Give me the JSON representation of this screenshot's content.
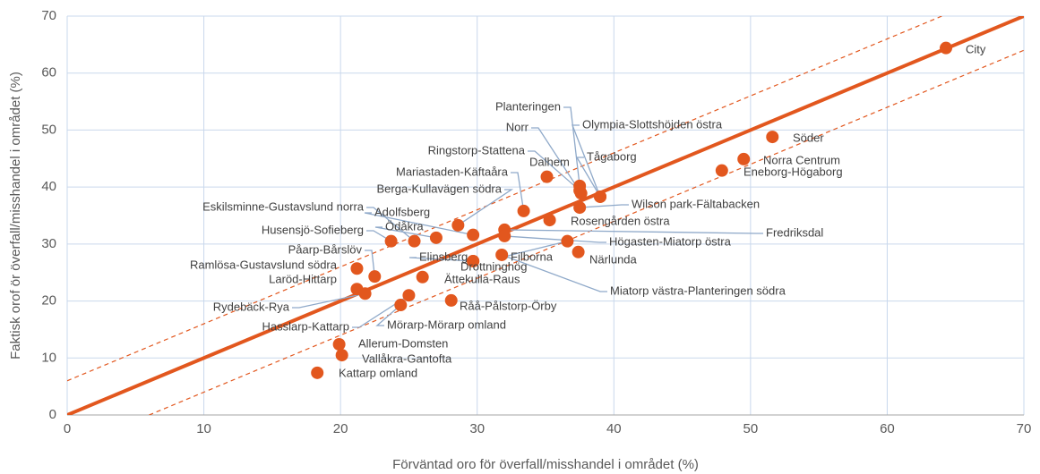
{
  "chart_data": {
    "type": "scatter",
    "xlabel": "Förväntad oro för överfall/misshandel i området (%)",
    "ylabel": "Faktisk orof ör överfall/misshandel i området (%)",
    "xlim": [
      0,
      70
    ],
    "ylim": [
      0,
      70
    ],
    "xticks": [
      0,
      10,
      20,
      30,
      40,
      50,
      60,
      70
    ],
    "yticks": [
      0,
      10,
      20,
      30,
      40,
      50,
      60,
      70
    ],
    "grid": true,
    "color": "#e2571e",
    "reference_lines": [
      {
        "slope": 1,
        "intercept": 0,
        "style": "solid"
      },
      {
        "slope": 1,
        "intercept": 6,
        "style": "dashed"
      },
      {
        "slope": 1,
        "intercept": -6,
        "style": "dashed"
      }
    ],
    "labels": [
      "City",
      "Söder",
      "Norra Centrum",
      "Eneborg-Högaborg",
      "Planteringen",
      "Norr",
      "Olympia-Slottshöjden östra",
      "Ringstorp-Stattena",
      "Tågaborg",
      "Dalhem",
      "Mariastaden-Käftaåra",
      "Berga-Kullavägen södra",
      "Wilson park-Fältabacken",
      "Eskilsminne-Gustavslund norra",
      "Adolfsberg",
      "Rosengården östra",
      "Ödåkra",
      "Husensjö-Sofieberg",
      "Fredriksdal",
      "Högasten-Miatorp östra",
      "Påarp-Bårslöv",
      "Närlunda",
      "Elinsberg",
      "Filborna",
      "Drottninghög",
      "Ramlösa-Gustavslund södra",
      "Laröd-Hittarp",
      "Ättekulla-Raus",
      "Miatorp västra-Planteringen södra",
      "Råå-Pålstorp-Örby",
      "Rydebäck-Rya",
      "Mörarp-Mörarp omland",
      "Hasslarp-Kattarp",
      "Allerum-Domsten",
      "Vallåkra-Gantofta",
      "Kattarp omland"
    ],
    "x": [
      64.3,
      51.6,
      49.5,
      47.9,
      37.5,
      37.6,
      39.0,
      37.5,
      39.0,
      35.1,
      33.4,
      28.6,
      37.5,
      25.4,
      29.7,
      35.3,
      27.0,
      23.7,
      32.0,
      32.0,
      22.5,
      37.4,
      29.7,
      36.6,
      29.7,
      21.2,
      21.2,
      26.0,
      31.8,
      28.1,
      21.8,
      24.4,
      25.0,
      19.9,
      20.1,
      18.3
    ],
    "y": [
      64.4,
      48.8,
      44.9,
      42.9,
      40.2,
      38.9,
      38.3,
      39.4,
      38.3,
      41.8,
      35.8,
      33.3,
      36.4,
      30.5,
      31.6,
      34.2,
      31.1,
      30.5,
      32.5,
      31.4,
      24.3,
      28.6,
      27.0,
      30.5,
      27.0,
      25.7,
      22.1,
      24.2,
      28.1,
      20.1,
      21.3,
      19.3,
      21.0,
      12.4,
      10.5,
      7.4
    ]
  }
}
